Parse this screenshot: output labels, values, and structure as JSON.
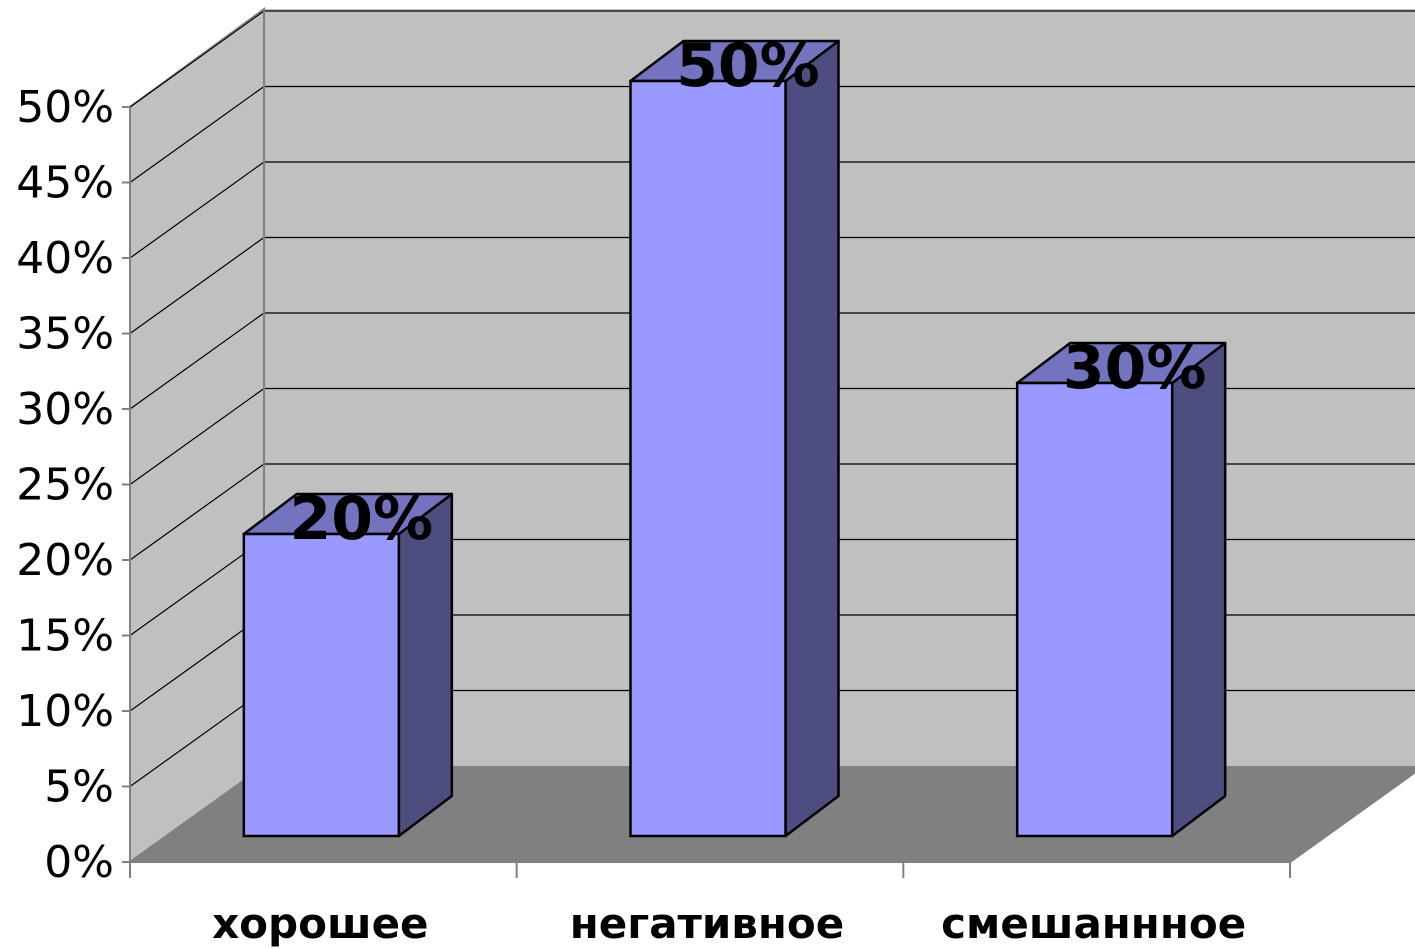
{
  "chart_data": {
    "type": "bar",
    "categories": [
      "хорошее",
      "негативное",
      "смешаннное"
    ],
    "values": [
      20,
      50,
      30
    ],
    "data_labels": [
      "20%",
      "50%",
      "30%"
    ],
    "y_ticks": [
      "0%",
      "5%",
      "10%",
      "15%",
      "20%",
      "25%",
      "30%",
      "35%",
      "40%",
      "45%",
      "50%"
    ],
    "ylim": [
      0,
      50
    ],
    "grid": true,
    "three_d": true,
    "title": "",
    "xlabel": "",
    "ylabel": "",
    "legend": "none"
  },
  "colors": {
    "wall": "#c0c0c0",
    "side_wall": "#c0c0c0",
    "floor": "#808080",
    "bar_front": "#9999ff",
    "bar_side": "#4d4d7f",
    "bar_top": "#7373bf",
    "gridline": "#000000",
    "axis": "#808080"
  }
}
